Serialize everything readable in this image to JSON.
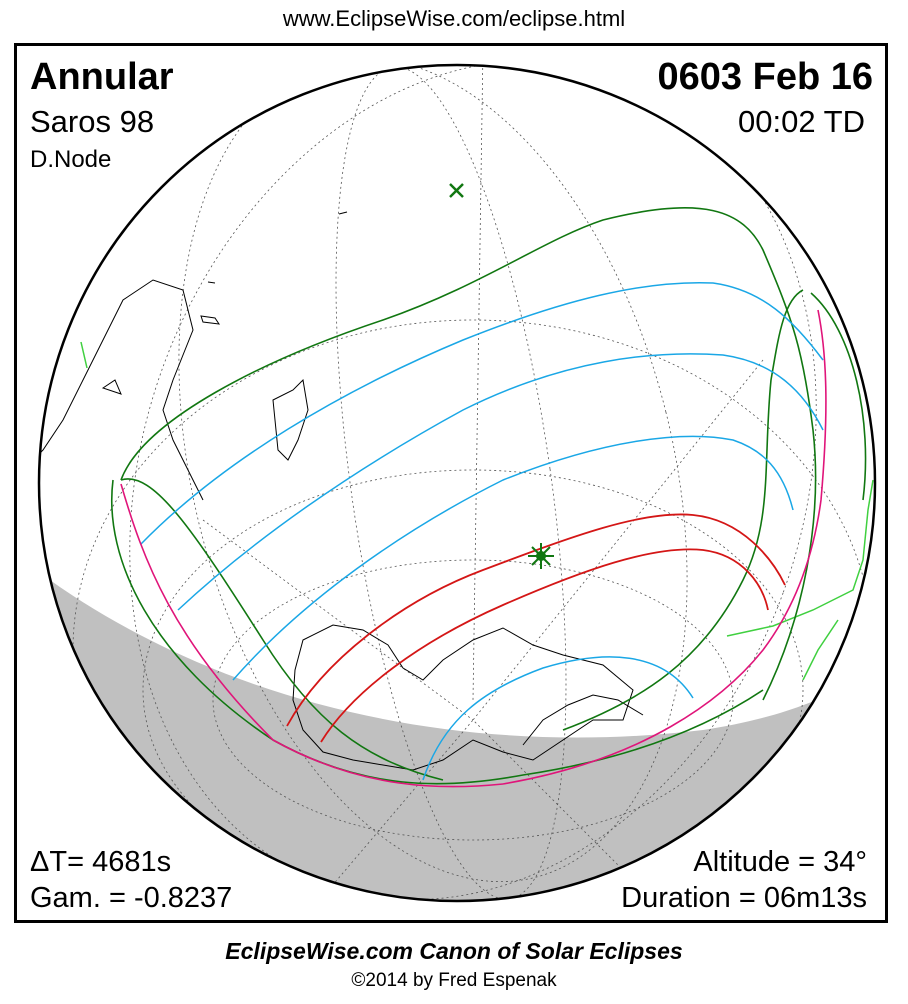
{
  "header": {
    "url": "www.EclipseWise.com/eclipse.html"
  },
  "eclipse": {
    "type": "Annular",
    "saros": "Saros  98",
    "node": "D.Node",
    "date": "0603 Feb 16",
    "time": "00:02 TD",
    "delta_t": "ΔT=   4681s",
    "gamma": "Gam. = -0.8237",
    "altitude": "Altitude = 34°",
    "duration": "Duration = 06m13s"
  },
  "footer": {
    "canon": "EclipseWise.com Canon of Solar Eclipses",
    "copyright": "©2014 by Fred Espenak"
  },
  "colors": {
    "night": "#c0c0c0",
    "graticule": "#555555",
    "coastline": "#000000",
    "penumbral_limits": "#117711",
    "partial_magnitude": "#1aa7e6",
    "rise_set": "#e0157a",
    "central_path": "#d41616",
    "greatest_eclipse": "#117711",
    "coast_highlight": "#40d040"
  },
  "markers": {
    "greatest_eclipse": "star-marker",
    "subsolar_point": "cross-marker"
  }
}
